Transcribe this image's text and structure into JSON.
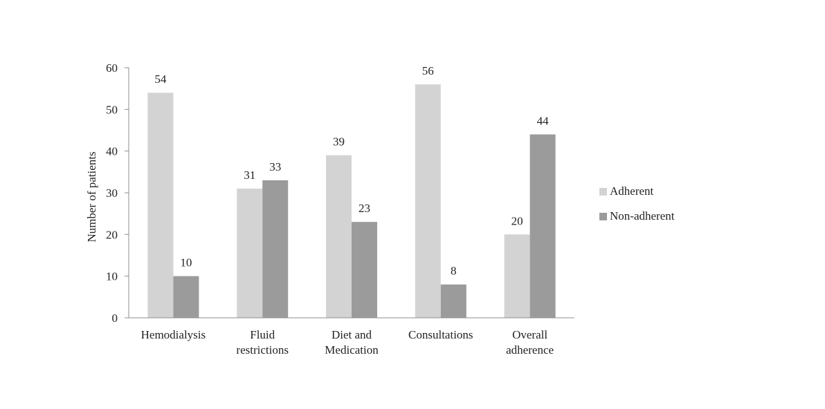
{
  "chart_data": {
    "type": "bar",
    "categories": [
      [
        "Hemodialysis"
      ],
      [
        "Fluid",
        "restrictions"
      ],
      [
        "Diet and",
        "Medication"
      ],
      [
        "Consultations"
      ],
      [
        "Overall",
        "adherence"
      ]
    ],
    "series": [
      {
        "name": "Adherent",
        "values": [
          54,
          31,
          39,
          56,
          20
        ],
        "color": "#d3d3d3"
      },
      {
        "name": "Non-adherent",
        "values": [
          10,
          33,
          23,
          8,
          44
        ],
        "color": "#9b9b9b"
      }
    ],
    "ylabel": "Number of patients",
    "ylim": [
      0,
      60
    ],
    "yticks": [
      0,
      10,
      20,
      30,
      40,
      50,
      60
    ],
    "grid": false,
    "legend_position": "right",
    "data_labels": true
  }
}
